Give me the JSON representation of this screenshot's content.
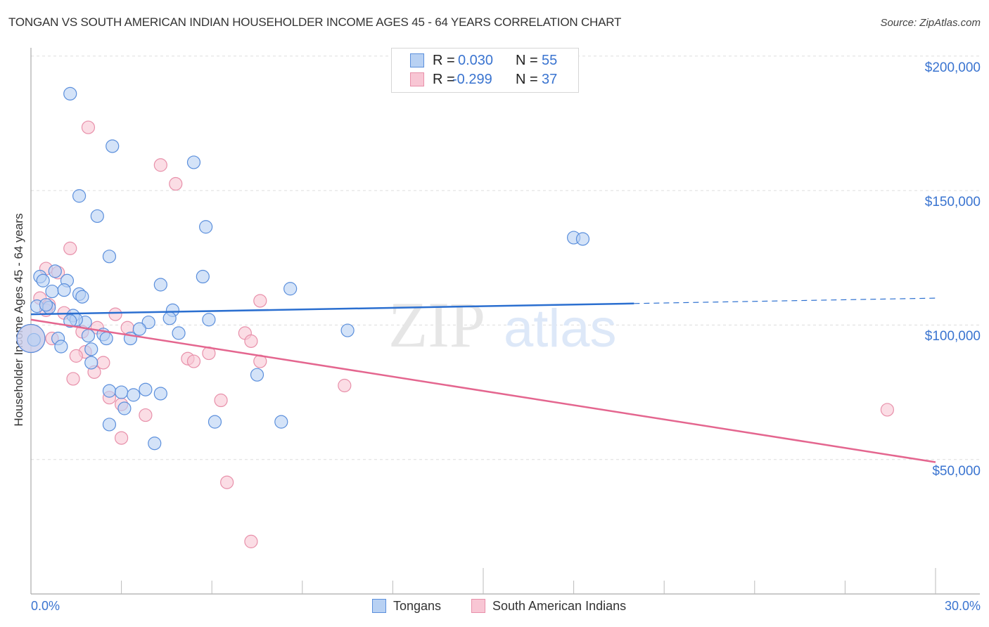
{
  "header": {
    "title": "TONGAN VS SOUTH AMERICAN INDIAN HOUSEHOLDER INCOME AGES 45 - 64 YEARS CORRELATION CHART",
    "source": "Source: ZipAtlas.com"
  },
  "watermark": {
    "zip": "ZIP",
    "atlas": "atlas"
  },
  "colors": {
    "tongans_fill": "#b8d1f3",
    "tongans_stroke": "#5b8fdc",
    "tongans_line": "#2b6fd0",
    "sai_fill": "#f8c6d4",
    "sai_stroke": "#e890aa",
    "sai_line": "#e4668f",
    "tick_text": "#3a74d0",
    "grid": "#dddddd"
  },
  "legend_top": {
    "rows": [
      {
        "r_label": "R =",
        "r_value": "0.030",
        "n_label": "N =",
        "n_value": "55"
      },
      {
        "r_label": "R =",
        "r_value": "-0.299",
        "n_label": "N =",
        "n_value": "37"
      }
    ]
  },
  "legend_bottom": {
    "items": [
      {
        "label": "Tongans"
      },
      {
        "label": "South American Indians"
      }
    ]
  },
  "axes": {
    "y_title": "Householder Income Ages 45 - 64 years",
    "y_ticks": [
      "$200,000",
      "$150,000",
      "$100,000",
      "$50,000"
    ],
    "x_ticks": [
      "0.0%",
      "30.0%"
    ]
  },
  "chart_data": {
    "type": "scatter",
    "title": "TONGAN VS SOUTH AMERICAN INDIAN HOUSEHOLDER INCOME AGES 45 - 64 YEARS CORRELATION CHART",
    "xlabel": "",
    "ylabel": "Householder Income Ages 45 - 64 years",
    "xlim": [
      0,
      30
    ],
    "ylim": [
      0,
      220000
    ],
    "x_unit": "%",
    "grid": true,
    "legend_position": "bottom",
    "series": [
      {
        "name": "Tongans",
        "R": 0.03,
        "N": 55,
        "trend": {
          "x": [
            0,
            20,
            30
          ],
          "y": [
            104000,
            108000,
            110000
          ],
          "solid_until_x": 20
        },
        "points": [
          {
            "x": 1.3,
            "y": 186000
          },
          {
            "x": 2.7,
            "y": 166500
          },
          {
            "x": 5.4,
            "y": 160500
          },
          {
            "x": 1.6,
            "y": 148000
          },
          {
            "x": 2.2,
            "y": 140500
          },
          {
            "x": 5.8,
            "y": 136500
          },
          {
            "x": 2.6,
            "y": 125500
          },
          {
            "x": 18.0,
            "y": 132500
          },
          {
            "x": 18.3,
            "y": 132000
          },
          {
            "x": 0.8,
            "y": 120000
          },
          {
            "x": 0.3,
            "y": 118000
          },
          {
            "x": 0.4,
            "y": 116500
          },
          {
            "x": 1.2,
            "y": 116500
          },
          {
            "x": 5.7,
            "y": 118000
          },
          {
            "x": 4.3,
            "y": 115000
          },
          {
            "x": 0.7,
            "y": 112500
          },
          {
            "x": 1.1,
            "y": 113000
          },
          {
            "x": 1.6,
            "y": 111500
          },
          {
            "x": 8.6,
            "y": 113500
          },
          {
            "x": 1.7,
            "y": 110500
          },
          {
            "x": 0.2,
            "y": 107000
          },
          {
            "x": 0.6,
            "y": 106500
          },
          {
            "x": 0.5,
            "y": 107500
          },
          {
            "x": 4.7,
            "y": 105500
          },
          {
            "x": 1.4,
            "y": 103500
          },
          {
            "x": 3.9,
            "y": 101000
          },
          {
            "x": 4.6,
            "y": 102500
          },
          {
            "x": 5.9,
            "y": 102000
          },
          {
            "x": 1.8,
            "y": 101000
          },
          {
            "x": 1.5,
            "y": 102000
          },
          {
            "x": 10.5,
            "y": 98000
          },
          {
            "x": 3.6,
            "y": 98500
          },
          {
            "x": 4.9,
            "y": 97000
          },
          {
            "x": 0.9,
            "y": 95000
          },
          {
            "x": 1.9,
            "y": 96000
          },
          {
            "x": 2.4,
            "y": 96500
          },
          {
            "x": 2.5,
            "y": 95000
          },
          {
            "x": 3.3,
            "y": 95000
          },
          {
            "x": 0.1,
            "y": 94500
          },
          {
            "x": 1.0,
            "y": 92000
          },
          {
            "x": 2.0,
            "y": 91000
          },
          {
            "x": 2.0,
            "y": 86000
          },
          {
            "x": 7.5,
            "y": 81500
          },
          {
            "x": 2.6,
            "y": 75500
          },
          {
            "x": 3.0,
            "y": 75000
          },
          {
            "x": 3.8,
            "y": 76000
          },
          {
            "x": 3.4,
            "y": 74000
          },
          {
            "x": 4.3,
            "y": 74500
          },
          {
            "x": 3.1,
            "y": 69000
          },
          {
            "x": 6.1,
            "y": 64000
          },
          {
            "x": 8.3,
            "y": 64000
          },
          {
            "x": 2.6,
            "y": 63000
          },
          {
            "x": 4.1,
            "y": 56000
          },
          {
            "x": 1.3,
            "y": 101500
          },
          {
            "x": 0.0,
            "y": 95000
          }
        ]
      },
      {
        "name": "South American Indians",
        "R": -0.299,
        "N": 37,
        "trend": {
          "x": [
            0,
            30
          ],
          "y": [
            102000,
            49000
          ]
        },
        "points": [
          {
            "x": 1.9,
            "y": 173500
          },
          {
            "x": 4.3,
            "y": 159500
          },
          {
            "x": 4.8,
            "y": 152500
          },
          {
            "x": 1.3,
            "y": 128500
          },
          {
            "x": 0.5,
            "y": 121000
          },
          {
            "x": 0.9,
            "y": 119500
          },
          {
            "x": 0.3,
            "y": 110000
          },
          {
            "x": 0.6,
            "y": 107500
          },
          {
            "x": 7.6,
            "y": 109000
          },
          {
            "x": 1.1,
            "y": 104500
          },
          {
            "x": 2.8,
            "y": 104000
          },
          {
            "x": 2.2,
            "y": 99000
          },
          {
            "x": 3.2,
            "y": 99000
          },
          {
            "x": 1.7,
            "y": 97500
          },
          {
            "x": 7.1,
            "y": 97000
          },
          {
            "x": 0.7,
            "y": 95000
          },
          {
            "x": 7.3,
            "y": 94000
          },
          {
            "x": 1.8,
            "y": 90000
          },
          {
            "x": 5.9,
            "y": 89500
          },
          {
            "x": 1.5,
            "y": 88500
          },
          {
            "x": 5.2,
            "y": 87500
          },
          {
            "x": 5.4,
            "y": 86500
          },
          {
            "x": 7.6,
            "y": 86500
          },
          {
            "x": 2.4,
            "y": 86000
          },
          {
            "x": 2.1,
            "y": 82500
          },
          {
            "x": 1.4,
            "y": 80000
          },
          {
            "x": 10.4,
            "y": 77500
          },
          {
            "x": 2.6,
            "y": 73000
          },
          {
            "x": 6.3,
            "y": 72000
          },
          {
            "x": 3.0,
            "y": 70500
          },
          {
            "x": 3.8,
            "y": 66500
          },
          {
            "x": 28.4,
            "y": 68500
          },
          {
            "x": 3.0,
            "y": 58000
          },
          {
            "x": 6.5,
            "y": 41500
          },
          {
            "x": 7.3,
            "y": 19500
          },
          {
            "x": 0.0,
            "y": 95000
          },
          {
            "x": 0.5,
            "y": 105500
          }
        ]
      }
    ]
  }
}
